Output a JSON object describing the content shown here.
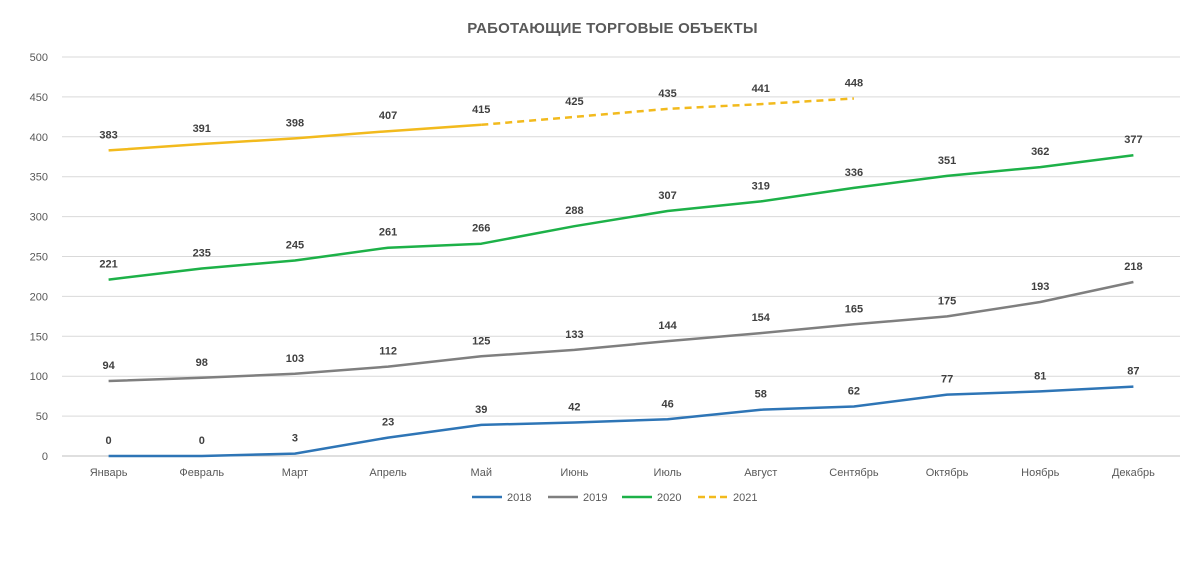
{
  "chart_data": {
    "type": "line",
    "title": "РАБОТАЮЩИЕ ТОРГОВЫЕ ОБЪЕКТЫ",
    "xlabel": "",
    "ylabel": "",
    "ylim": [
      0,
      500
    ],
    "yticks": [
      0,
      50,
      100,
      150,
      200,
      250,
      300,
      350,
      400,
      450,
      500
    ],
    "grid": true,
    "legend_position": "bottom",
    "categories": [
      "Январь",
      "Февраль",
      "Март",
      "Апрель",
      "Май",
      "Июнь",
      "Июль",
      "Август",
      "Сентябрь",
      "Октябрь",
      "Ноябрь",
      "Декабрь"
    ],
    "series": [
      {
        "name": "2018",
        "color": "#2E75B6",
        "style": "solid",
        "values": [
          0,
          0,
          3,
          23,
          39,
          42,
          46,
          58,
          62,
          77,
          81,
          87
        ]
      },
      {
        "name": "2019",
        "color": "#7F7F7F",
        "style": "solid",
        "values": [
          94,
          98,
          103,
          112,
          125,
          133,
          144,
          154,
          165,
          175,
          193,
          218
        ]
      },
      {
        "name": "2020",
        "color": "#1DB148",
        "style": "solid",
        "values": [
          221,
          235,
          245,
          261,
          266,
          288,
          307,
          319,
          336,
          351,
          362,
          377
        ]
      },
      {
        "name": "2021",
        "color": "#F2BA1D",
        "style": "dashed-after-may",
        "values": [
          383,
          391,
          398,
          407,
          415,
          425,
          435,
          441,
          448,
          null,
          null,
          null
        ]
      }
    ]
  }
}
